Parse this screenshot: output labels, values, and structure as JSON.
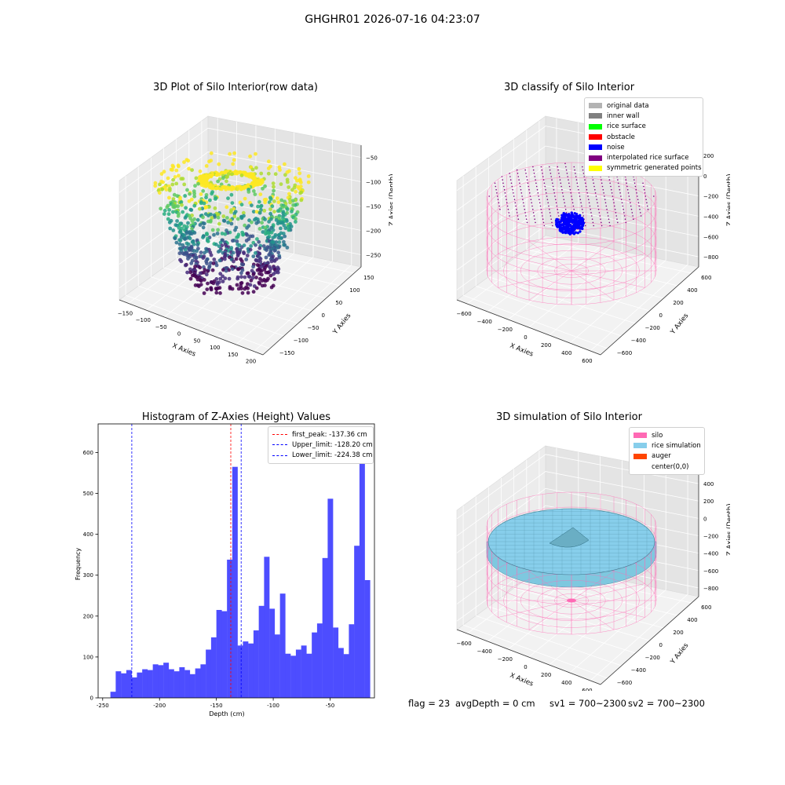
{
  "figure_title": "GHGHR01 2026-07-16 04:23:07",
  "panels": {
    "raw": {
      "title": "3D Plot of Silo Interior(row data)",
      "xlabel": "X Axies",
      "ylabel": "Y Axies",
      "zlabel": "Z Axies (Depth)",
      "xticks": [
        "−150",
        "−100",
        "−50",
        "0",
        "50",
        "100",
        "150",
        "200"
      ],
      "yticks": [
        "150",
        "100",
        "50",
        "0",
        "−50",
        "−100",
        "−150"
      ],
      "zticks": [
        "−50",
        "−100",
        "−150",
        "−200",
        "−250"
      ]
    },
    "classify": {
      "title": "3D classify of Silo Interior",
      "xlabel": "X Axies",
      "ylabel": "Y Axies",
      "zlabel": "Z Axies (Depth)",
      "xticks": [
        "−600",
        "−400",
        "−200",
        "0",
        "200",
        "400",
        "600"
      ],
      "yticks": [
        "600",
        "400",
        "200",
        "0",
        "−200",
        "−400",
        "−600"
      ],
      "zticks": [
        "200",
        "0",
        "−200",
        "−400",
        "−600",
        "−800"
      ],
      "legend": [
        {
          "label": "original data",
          "color": "#b3b3b3"
        },
        {
          "label": "inner wall",
          "color": "#808080"
        },
        {
          "label": "rice surface",
          "color": "#00ff00"
        },
        {
          "label": "obstacle",
          "color": "#ff0000"
        },
        {
          "label": "noise",
          "color": "#0000ff"
        },
        {
          "label": "interpolated rice surface",
          "color": "#800080"
        },
        {
          "label": "symmetric generated points",
          "color": "#ffff00"
        }
      ]
    },
    "histogram": {
      "title": "Histogram of Z-Axies (Height) Values",
      "legend": [
        {
          "label": "first_peak: -137.36 cm",
          "color": "#ff0000"
        },
        {
          "label": "Upper_limit: -128.20 cm",
          "color": "#0000ff"
        },
        {
          "label": "Lower_limit: -224.38 cm",
          "color": "#0000ff"
        }
      ]
    },
    "simulation": {
      "title": "3D simulation of Silo Interior",
      "xlabel": "X Axies",
      "ylabel": "Y Axies",
      "zlabel": "Z Axies (Depth)",
      "xticks": [
        "−600",
        "−400",
        "−200",
        "0",
        "200",
        "400",
        "600"
      ],
      "yticks": [
        "600",
        "400",
        "200",
        "0",
        "−200",
        "−400",
        "−600"
      ],
      "zticks": [
        "400",
        "200",
        "0",
        "−200",
        "−400",
        "−600",
        "−800"
      ],
      "legend": [
        {
          "label": "silo",
          "color": "#ff69b4"
        },
        {
          "label": "rice simulation",
          "color": "#87ceeb"
        },
        {
          "label": "auger",
          "color": "#ff4500"
        },
        {
          "label": "center(0,0)",
          "color": "#ffffff"
        }
      ]
    }
  },
  "footer": {
    "flag": "flag = 23",
    "avg_depth": "avgDepth = 0 cm",
    "sv1": "sv1 = 700~2300",
    "sv2": "sv2 = 700~2300"
  },
  "chart_data": {
    "type": "bar",
    "title": "Histogram of Z-Axies (Height) Values",
    "xlabel": "Depth (cm)",
    "ylabel": "Frequency",
    "xlim": [
      -254,
      -11
    ],
    "ylim": [
      0,
      670
    ],
    "xticks": [
      -250,
      -200,
      -150,
      -100,
      -50
    ],
    "yticks": [
      0,
      100,
      200,
      300,
      400,
      500,
      600
    ],
    "bar_color": "#4d4dff",
    "bin_start": -243.2,
    "bin_width": 4.66,
    "values": [
      15,
      65,
      60,
      68,
      50,
      62,
      70,
      68,
      82,
      80,
      86,
      70,
      65,
      75,
      68,
      58,
      72,
      82,
      118,
      148,
      215,
      212,
      338,
      565,
      128,
      138,
      133,
      165,
      225,
      345,
      218,
      155,
      255,
      108,
      103,
      118,
      128,
      108,
      160,
      182,
      342,
      487,
      172,
      122,
      107,
      180,
      372,
      632,
      288
    ],
    "vlines": [
      {
        "label": "first_peak: -137.36 cm",
        "x": -137.36,
        "color": "#ff0000"
      },
      {
        "label": "Upper_limit: -128.20 cm",
        "x": -128.2,
        "color": "#0000ff"
      },
      {
        "label": "Lower_limit: -224.38 cm",
        "x": -224.38,
        "color": "#0000ff"
      }
    ],
    "legend_position": "upper right"
  }
}
